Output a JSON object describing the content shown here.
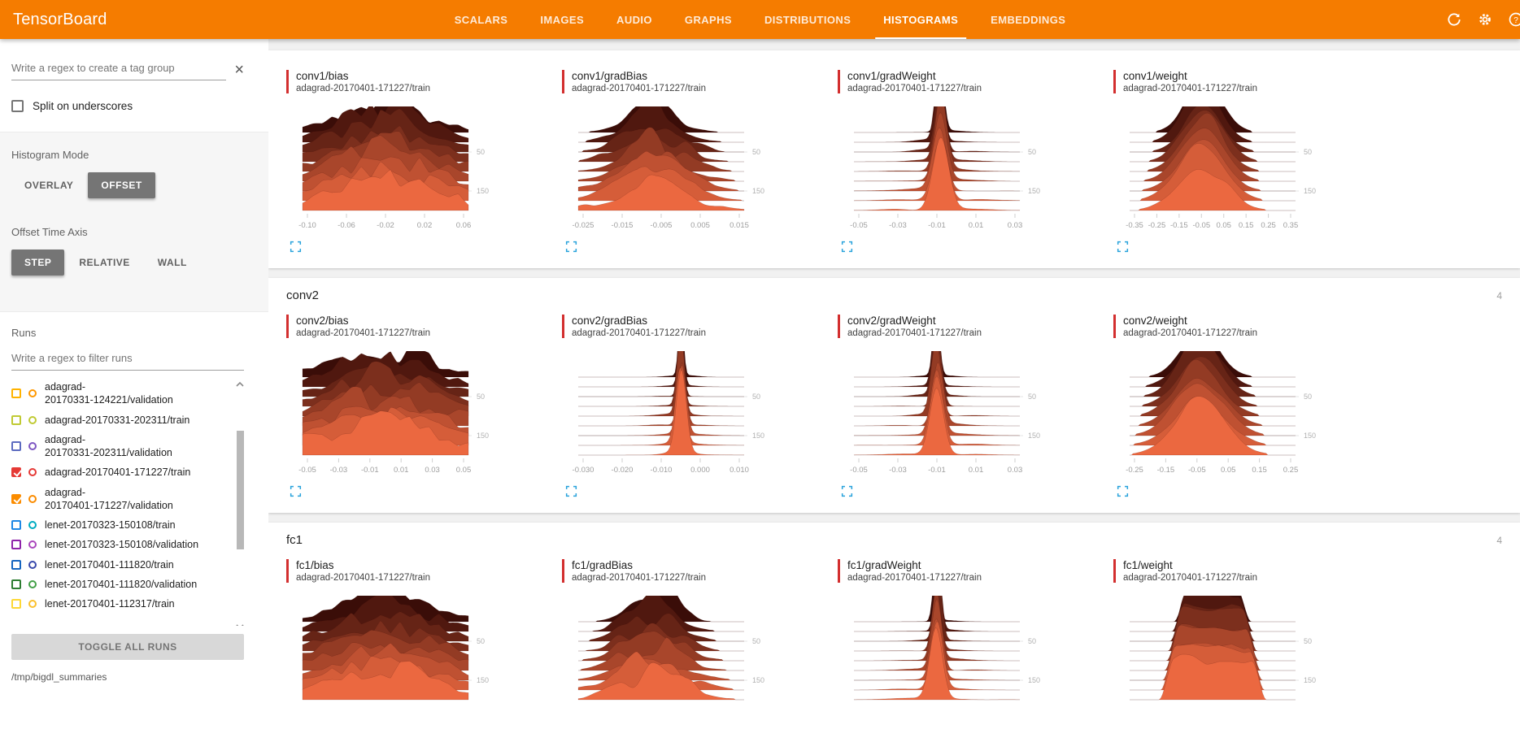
{
  "app": {
    "title": "TensorBoard"
  },
  "nav": {
    "tabs": [
      "SCALARS",
      "IMAGES",
      "AUDIO",
      "GRAPHS",
      "DISTRIBUTIONS",
      "HISTOGRAMS",
      "EMBEDDINGS"
    ],
    "active": "HISTOGRAMS"
  },
  "header": {
    "icons": [
      "refresh-icon",
      "settings-icon",
      "help-icon"
    ]
  },
  "colors": {
    "accent": "#f57c00",
    "run_red": "#d32f2f",
    "expand_blue": "#2aa3dc",
    "ridge_back": "#3a0d08",
    "ridge_front": "#eb6840"
  },
  "sidebar": {
    "tag_filter_placeholder": "Write a regex to create a tag group",
    "split_on_underscores_label": "Split on underscores",
    "histogram_mode": {
      "label": "Histogram Mode",
      "options": [
        "OVERLAY",
        "OFFSET"
      ],
      "selected": "OFFSET"
    },
    "offset_time_axis": {
      "label": "Offset Time Axis",
      "options": [
        "STEP",
        "RELATIVE",
        "WALL"
      ],
      "selected": "STEP"
    },
    "runs": {
      "label": "Runs",
      "filter_placeholder": "Write a regex to filter runs",
      "toggle_all_label": "TOGGLE ALL RUNS",
      "log_dir": "/tmp/bigdl_summaries",
      "items": [
        {
          "label_lines": [
            "adagrad-",
            "20170331-124221/validation"
          ],
          "checked": false,
          "checkbox_color": "#ffb300",
          "circle_color": "#ff9800"
        },
        {
          "label_lines": [
            "adagrad-20170331-202311/train"
          ],
          "checked": false,
          "checkbox_color": "#c0ca33",
          "circle_color": "#c0ca33"
        },
        {
          "label_lines": [
            "adagrad-",
            "20170331-202311/validation"
          ],
          "checked": false,
          "checkbox_color": "#5c6bc0",
          "circle_color": "#7e57c2"
        },
        {
          "label_lines": [
            "adagrad-20170401-171227/train"
          ],
          "checked": true,
          "checkbox_color": "#e53935",
          "circle_color": "#e53935"
        },
        {
          "label_lines": [
            "adagrad-",
            "20170401-171227/validation"
          ],
          "checked": true,
          "checkbox_color": "#fb8c00",
          "circle_color": "#fb8c00"
        },
        {
          "label_lines": [
            "lenet-20170323-150108/train"
          ],
          "checked": false,
          "checkbox_color": "#1e88e5",
          "circle_color": "#00acc1"
        },
        {
          "label_lines": [
            "lenet-20170323-150108/validation"
          ],
          "checked": false,
          "checkbox_color": "#8e24aa",
          "circle_color": "#ab47bc"
        },
        {
          "label_lines": [
            "lenet-20170401-111820/train"
          ],
          "checked": false,
          "checkbox_color": "#1565c0",
          "circle_color": "#3949ab"
        },
        {
          "label_lines": [
            "lenet-20170401-111820/validation"
          ],
          "checked": false,
          "checkbox_color": "#2e7d32",
          "circle_color": "#43a047"
        },
        {
          "label_lines": [
            "lenet-20170401-112317/train"
          ],
          "checked": false,
          "checkbox_color": "#fdd835",
          "circle_color": "#fbc02d"
        }
      ]
    }
  },
  "main": {
    "sections": [
      {
        "name": "conv1",
        "count": "",
        "header_visible": false
      },
      {
        "name": "conv2",
        "count": "4",
        "header_visible": true
      },
      {
        "name": "fc1",
        "count": "4",
        "header_visible": true
      }
    ]
  },
  "chart_data": [
    {
      "type": "histogram-ridgeline",
      "mode": "offset",
      "section": "conv1",
      "tag": "conv1/bias",
      "run": "adagrad-20170401-171227/train",
      "x_ticks": [
        "-0.10",
        "-0.06",
        "-0.02",
        "0.02",
        "0.06"
      ],
      "y_ticks": [
        50,
        150
      ],
      "profile": {
        "kind": "jagged",
        "center": 0.5,
        "width": 0.3,
        "amp": 1.0
      }
    },
    {
      "type": "histogram-ridgeline",
      "mode": "offset",
      "section": "conv1",
      "tag": "conv1/gradBias",
      "run": "adagrad-20170401-171227/train",
      "x_ticks": [
        "-0.025",
        "-0.015",
        "-0.005",
        "0.005",
        "0.015"
      ],
      "y_ticks": [
        50,
        150
      ],
      "profile": {
        "kind": "lumpy",
        "center": 0.45,
        "width": 0.19,
        "amp": 0.95
      }
    },
    {
      "type": "histogram-ridgeline",
      "mode": "offset",
      "section": "conv1",
      "tag": "conv1/gradWeight",
      "run": "adagrad-20170401-171227/train",
      "x_ticks": [
        "-0.05",
        "-0.03",
        "-0.01",
        "0.01",
        "0.03"
      ],
      "y_ticks": [
        50,
        150
      ],
      "profile": {
        "kind": "spike",
        "center": 0.52,
        "width": 0.035,
        "amp": 1.0
      }
    },
    {
      "type": "histogram-ridgeline",
      "mode": "offset",
      "section": "conv1",
      "tag": "conv1/weight",
      "run": "adagrad-20170401-171227/train",
      "x_ticks": [
        "-0.35",
        "-0.25",
        "-0.15",
        "-0.05",
        "0.05",
        "0.15",
        "0.25",
        "0.35"
      ],
      "y_ticks": [
        50,
        150
      ],
      "profile": {
        "kind": "bell",
        "center": 0.44,
        "width": 0.13,
        "amp": 1.0
      }
    },
    {
      "type": "histogram-ridgeline",
      "mode": "offset",
      "section": "conv2",
      "tag": "conv2/bias",
      "run": "adagrad-20170401-171227/train",
      "x_ticks": [
        "-0.05",
        "-0.03",
        "-0.01",
        "0.01",
        "0.03",
        "0.05"
      ],
      "y_ticks": [
        50,
        150
      ],
      "profile": {
        "kind": "jagged",
        "center": 0.48,
        "width": 0.32,
        "amp": 1.0
      }
    },
    {
      "type": "histogram-ridgeline",
      "mode": "offset",
      "section": "conv2",
      "tag": "conv2/gradBias",
      "run": "adagrad-20170401-171227/train",
      "x_ticks": [
        "-0.030",
        "-0.020",
        "-0.010",
        "0.000",
        "0.010"
      ],
      "y_ticks": [
        50,
        150
      ],
      "profile": {
        "kind": "spike",
        "center": 0.62,
        "width": 0.022,
        "amp": 1.0
      }
    },
    {
      "type": "histogram-ridgeline",
      "mode": "offset",
      "section": "conv2",
      "tag": "conv2/gradWeight",
      "run": "adagrad-20170401-171227/train",
      "x_ticks": [
        "-0.05",
        "-0.03",
        "-0.01",
        "0.01",
        "0.03"
      ],
      "y_ticks": [
        50,
        150
      ],
      "profile": {
        "kind": "spike",
        "center": 0.5,
        "width": 0.03,
        "amp": 1.0
      }
    },
    {
      "type": "histogram-ridgeline",
      "mode": "offset",
      "section": "conv2",
      "tag": "conv2/weight",
      "run": "adagrad-20170401-171227/train",
      "x_ticks": [
        "-0.25",
        "-0.15",
        "-0.05",
        "0.05",
        "0.15",
        "0.25"
      ],
      "y_ticks": [
        50,
        150
      ],
      "profile": {
        "kind": "bell",
        "center": 0.42,
        "width": 0.14,
        "amp": 1.0
      }
    },
    {
      "type": "histogram-ridgeline",
      "mode": "offset",
      "section": "fc1",
      "tag": "fc1/bias",
      "run": "adagrad-20170401-171227/train",
      "x_ticks": [],
      "y_ticks": [
        50,
        150
      ],
      "profile": {
        "kind": "jagged",
        "center": 0.5,
        "width": 0.3,
        "amp": 1.0
      }
    },
    {
      "type": "histogram-ridgeline",
      "mode": "offset",
      "section": "fc1",
      "tag": "fc1/gradBias",
      "run": "adagrad-20170401-171227/train",
      "x_ticks": [],
      "y_ticks": [
        50,
        150
      ],
      "profile": {
        "kind": "lumpy",
        "center": 0.45,
        "width": 0.17,
        "amp": 0.95
      }
    },
    {
      "type": "histogram-ridgeline",
      "mode": "offset",
      "section": "fc1",
      "tag": "fc1/gradWeight",
      "run": "adagrad-20170401-171227/train",
      "x_ticks": [],
      "y_ticks": [
        50,
        150
      ],
      "profile": {
        "kind": "spike",
        "center": 0.5,
        "width": 0.028,
        "amp": 1.0
      }
    },
    {
      "type": "histogram-ridgeline",
      "mode": "offset",
      "section": "fc1",
      "tag": "fc1/weight",
      "run": "adagrad-20170401-171227/train",
      "x_ticks": [],
      "y_ticks": [
        50,
        150
      ],
      "profile": {
        "kind": "flattop",
        "center": 0.5,
        "width": 0.3,
        "amp": 0.95
      }
    }
  ]
}
